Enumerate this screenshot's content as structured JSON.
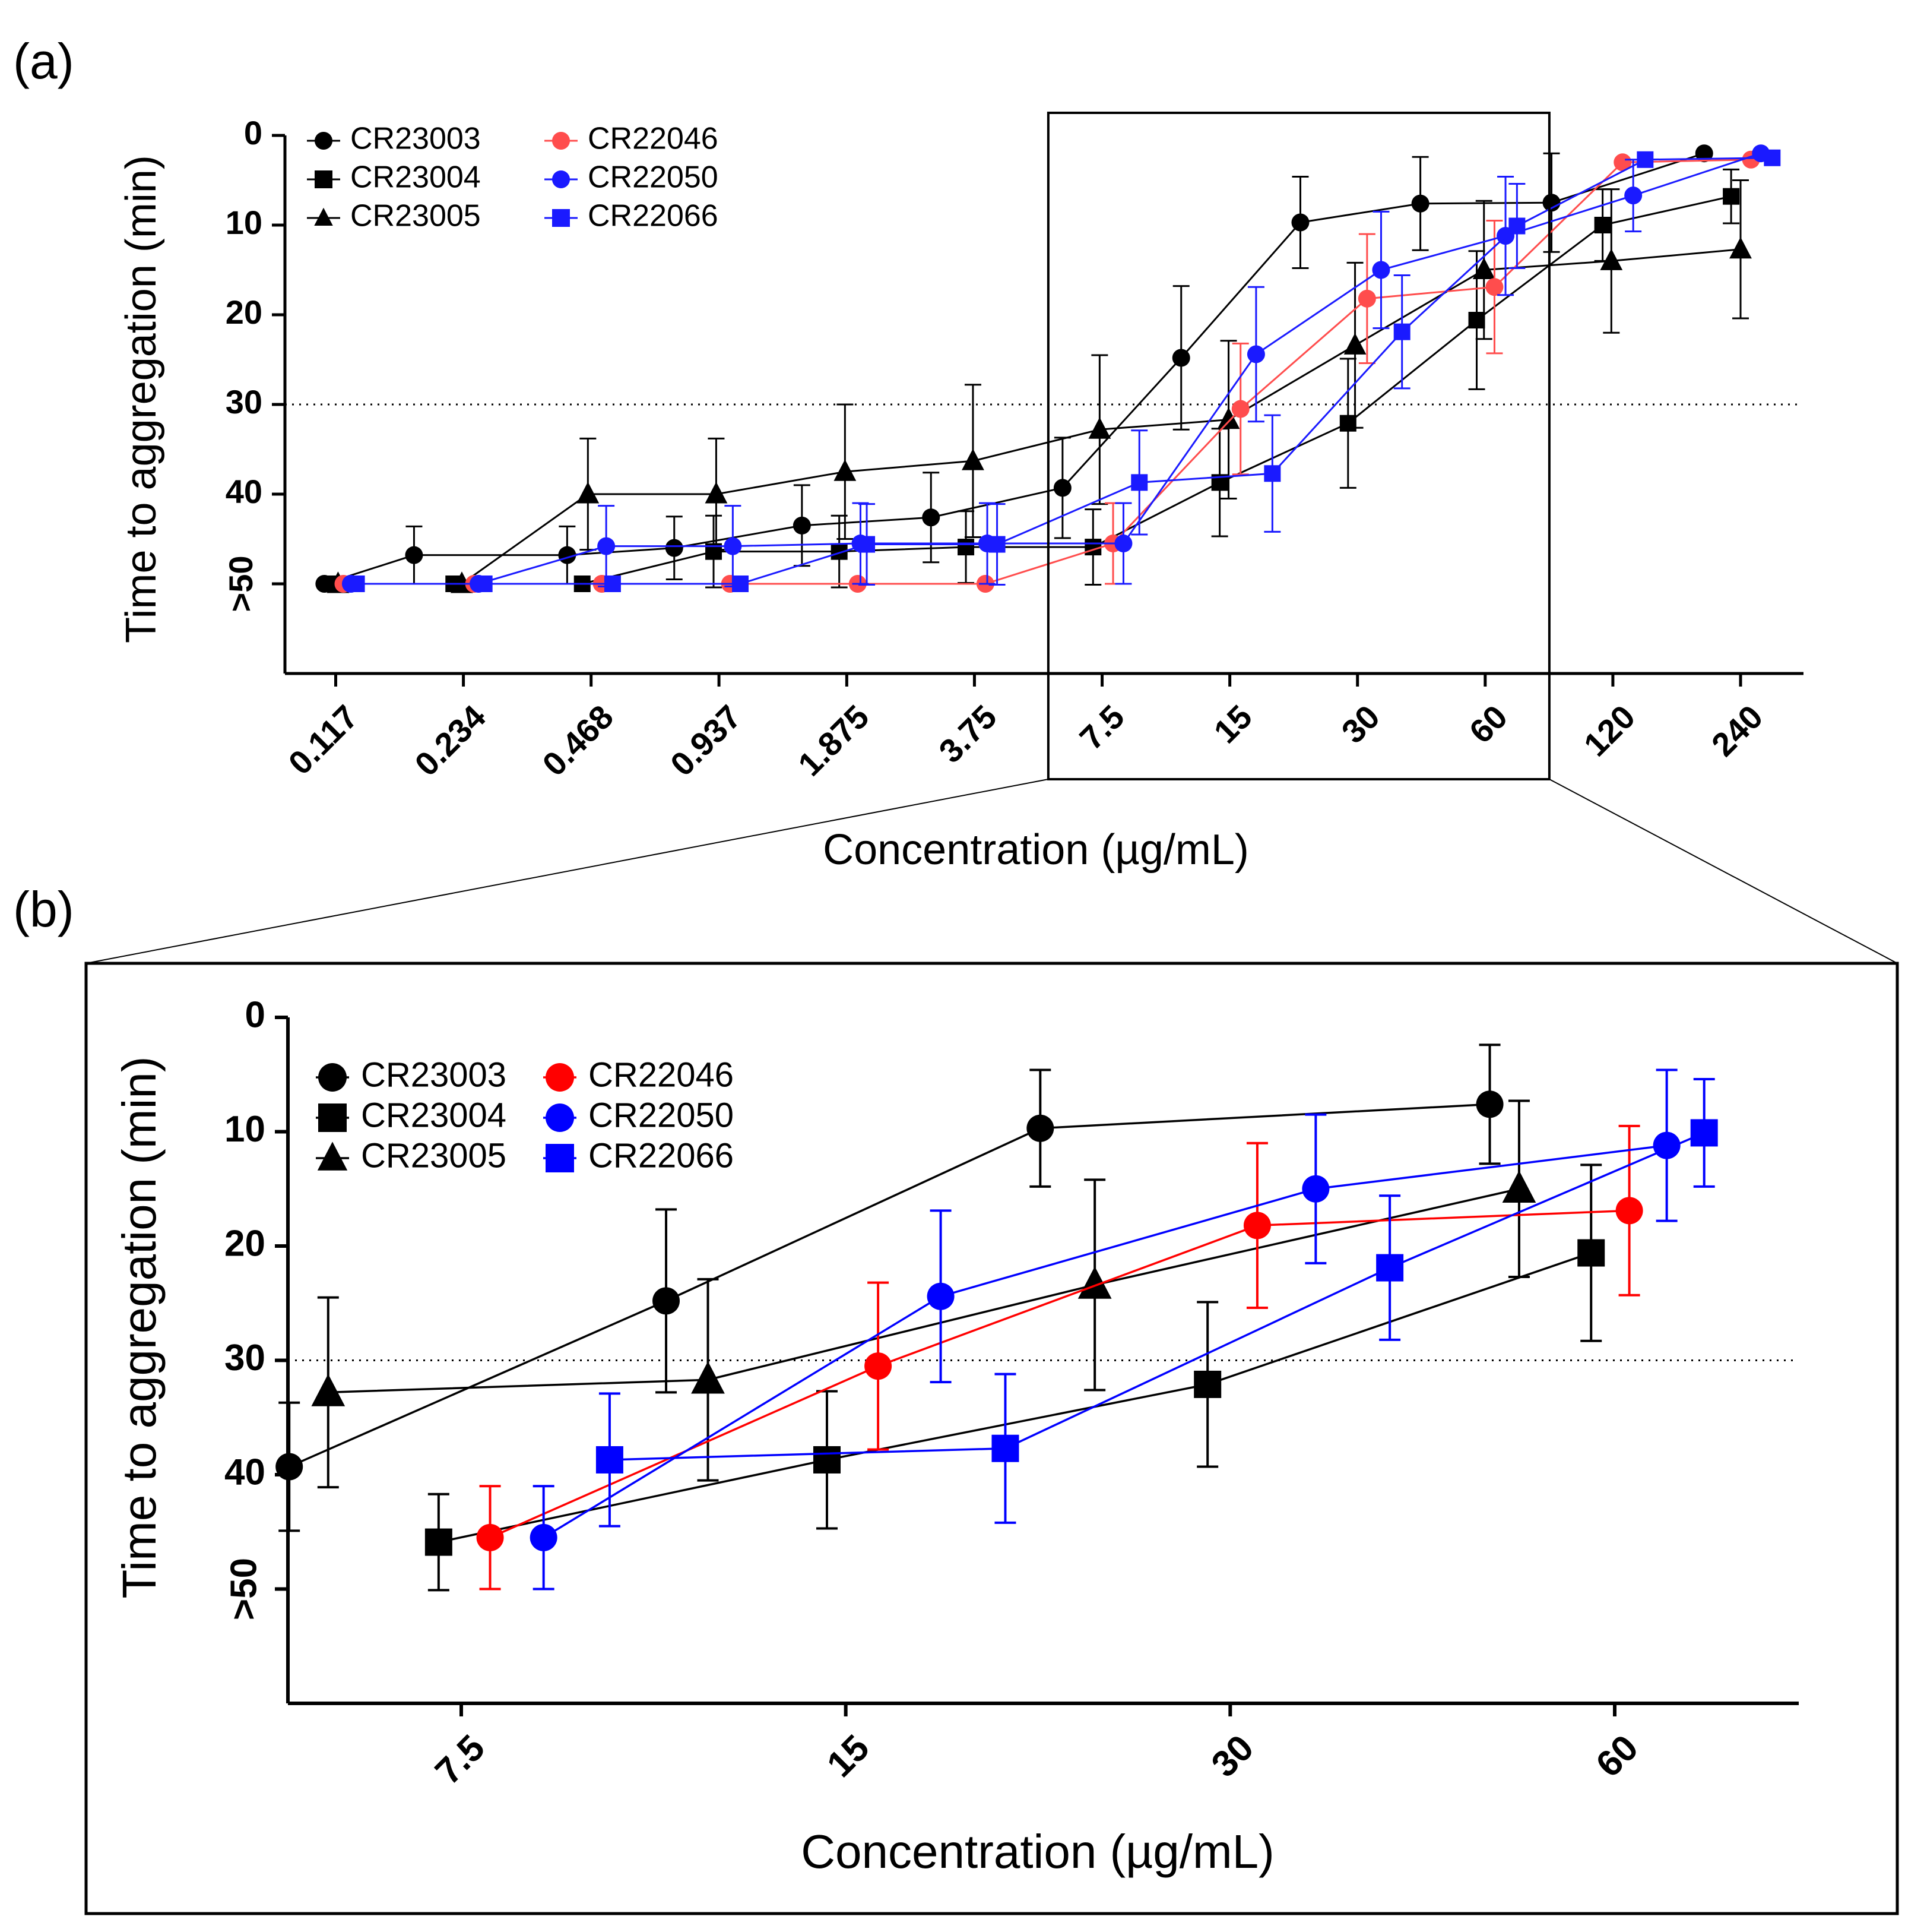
{
  "figure": {
    "panel_labels": [
      "(a)",
      "(b)"
    ]
  },
  "chart_data": [
    {
      "type": "line",
      "panel": "(a)",
      "xlabel": "Concentration (µg/mL)",
      "ylabel": "Time to aggregation (min)",
      "x_scale": "log2",
      "x_ticks": [
        0.117,
        0.234,
        0.468,
        0.937,
        1.875,
        3.75,
        7.5,
        15,
        30,
        60,
        120,
        240
      ],
      "x_tick_labels": [
        "0.117",
        "0.234",
        "0.468",
        "0.937",
        "1.875",
        "3.75",
        "7.5",
        "15",
        "30",
        "60",
        "120",
        "240"
      ],
      "y_ticks": [
        0,
        10,
        20,
        30,
        40,
        50
      ],
      "y_tick_labels": [
        "0",
        "10",
        "20",
        "30",
        "40",
        ">50"
      ],
      "ylim": [
        0,
        60
      ],
      "y_inverted": true,
      "reference_line": 30,
      "zoom_box_x": [
        5.6,
        85
      ],
      "legend": [
        "CR23003",
        "CR23004",
        "CR23005",
        "CR22046",
        "CR22050",
        "CR22066"
      ],
      "series": [
        {
          "name": "CR23003",
          "color": "#000000",
          "marker": "circle",
          "points": [
            [
              0.11,
              50,
              0
            ],
            [
              0.179,
              46.8,
              3.2
            ],
            [
              0.411,
              46.8,
              3.2
            ],
            [
              0.735,
              46,
              3.5
            ],
            [
              1.47,
              43.5,
              4.5
            ],
            [
              2.962,
              42.6,
              5
            ],
            [
              6.05,
              39.3,
              5.6
            ],
            [
              11.52,
              24.8,
              8
            ],
            [
              22.0,
              9.7,
              5.1
            ],
            [
              42.2,
              7.6,
              5.2
            ],
            [
              86.0,
              7.5,
              5.5
            ],
            [
              197,
              2,
              0
            ]
          ]
        },
        {
          "name": "CR23004",
          "color": "#000000",
          "marker": "square",
          "points": [
            [
              0.1129,
              50,
              0
            ],
            [
              0.222,
              50,
              0
            ],
            [
              0.446,
              50,
              0
            ],
            [
              0.91,
              46.4,
              4
            ],
            [
              1.8,
              46.4,
              4
            ],
            [
              3.58,
              45.9,
              4
            ],
            [
              7.14,
              45.9,
              4.2
            ],
            [
              14.2,
              38.7,
              6
            ],
            [
              28.5,
              32.1,
              7.2
            ],
            [
              57.3,
              20.6,
              7.7
            ],
            [
              113.5,
              10,
              4
            ],
            [
              228,
              6.8,
              3
            ]
          ]
        },
        {
          "name": "CR23005",
          "color": "#000000",
          "marker": "triangle",
          "points": [
            [
              0.1185,
              50,
              0
            ],
            [
              0.232,
              50,
              0
            ],
            [
              0.46,
              40,
              6.2
            ],
            [
              0.923,
              40,
              6.2
            ],
            [
              1.857,
              37.5,
              7.5
            ],
            [
              3.72,
              36.3,
              8.5
            ],
            [
              7.4,
              32.8,
              8.3
            ],
            [
              14.9,
              31.7,
              8.8
            ],
            [
              29.6,
              23.4,
              9.2
            ],
            [
              59.6,
              15,
              7.7
            ],
            [
              119,
              14,
              8
            ],
            [
              240,
              12.7,
              7.7
            ]
          ]
        },
        {
          "name": "CR22046",
          "color": "#ff4d4d",
          "marker": "circle",
          "points": [
            [
              0.122,
              50,
              0
            ],
            [
              0.248,
              50,
              0
            ],
            [
              0.496,
              50,
              0
            ],
            [
              0.995,
              50,
              0
            ],
            [
              1.99,
              50,
              0
            ],
            [
              3.98,
              50,
              0
            ],
            [
              7.96,
              45.5,
              4.5
            ],
            [
              15.9,
              30.5,
              7.3
            ],
            [
              31.6,
              18.2,
              7.2
            ],
            [
              63.1,
              16.9,
              7.4
            ],
            [
              126.5,
              3,
              0
            ],
            [
              254,
              2.7,
              0
            ]
          ]
        },
        {
          "name": "CR22050",
          "color": "#1a1aff",
          "marker": "circle",
          "points": [
            [
              0.127,
              50,
              0
            ],
            [
              0.254,
              50,
              0
            ],
            [
              0.508,
              45.8,
              4.5
            ],
            [
              1.01,
              45.8,
              4.5
            ],
            [
              2.02,
              45.5,
              4.5
            ],
            [
              4.02,
              45.5,
              4.5
            ],
            [
              8.42,
              45.5,
              4.5
            ],
            [
              17.3,
              24.4,
              7.5
            ],
            [
              34.1,
              15,
              6.5
            ],
            [
              67.0,
              11.2,
              6.6
            ],
            [
              134,
              6.7,
              4
            ],
            [
              268,
              2,
              0
            ]
          ]
        },
        {
          "name": "CR22066",
          "color": "#1a1aff",
          "marker": "square",
          "points": [
            [
              0.131,
              50,
              0
            ],
            [
              0.262,
              50,
              0
            ],
            [
              0.526,
              50,
              0
            ],
            [
              1.052,
              50,
              0
            ],
            [
              2.09,
              45.6,
              4.5
            ],
            [
              4.24,
              45.6,
              4.5
            ],
            [
              9.18,
              38.7,
              5.8
            ],
            [
              18.9,
              37.7,
              6.5
            ],
            [
              38.2,
              21.9,
              6.3
            ],
            [
              71.3,
              10.1,
              4.7
            ],
            [
              143,
              2.7,
              0
            ],
            [
              285,
              2.5,
              0
            ]
          ]
        }
      ]
    },
    {
      "type": "line",
      "panel": "(b)",
      "xlabel": "Concentration (µg/mL)",
      "ylabel": "Time to aggregation (min)",
      "x_scale": "log2",
      "x_ticks": [
        7.5,
        15,
        30,
        60
      ],
      "x_tick_labels": [
        "7.5",
        "15",
        "30",
        "60"
      ],
      "y_ticks": [
        0,
        10,
        20,
        30,
        40,
        50
      ],
      "y_tick_labels": [
        "0",
        "10",
        "20",
        "30",
        "40",
        ">50"
      ],
      "ylim": [
        0,
        60
      ],
      "y_inverted": true,
      "reference_line": 30,
      "legend": [
        "CR23003",
        "CR23004",
        "CR23005",
        "CR22046",
        "CR22050",
        "CR22066"
      ],
      "series": [
        {
          "name": "CR23003",
          "color": "#000000",
          "marker": "circle",
          "points": [
            [
              5.5,
              39.3,
              5.6
            ],
            [
              10.85,
              24.8,
              8
            ],
            [
              21.3,
              9.7,
              5.1
            ],
            [
              47.9,
              7.6,
              5.2
            ]
          ]
        },
        {
          "name": "CR23004",
          "color": "#000000",
          "marker": "square",
          "points": [
            [
              7.2,
              45.9,
              4.2
            ],
            [
              14.5,
              38.7,
              6
            ],
            [
              28.8,
              32.1,
              7.2
            ],
            [
              57.5,
              20.6,
              7.7
            ]
          ]
        },
        {
          "name": "CR23005",
          "color": "#000000",
          "marker": "triangle",
          "points": [
            [
              5.9,
              32.8,
              8.3
            ],
            [
              11.7,
              31.7,
              8.8
            ],
            [
              23.5,
              23.4,
              9.2
            ],
            [
              50.5,
              15,
              7.7
            ]
          ]
        },
        {
          "name": "CR22046",
          "color": "#ff0000",
          "marker": "circle",
          "points": [
            [
              7.9,
              45.5,
              4.5
            ],
            [
              15.9,
              30.5,
              7.3
            ],
            [
              31.5,
              18.2,
              7.2
            ],
            [
              61.6,
              16.9,
              7.4
            ]
          ]
        },
        {
          "name": "CR22050",
          "color": "#0000ff",
          "marker": "circle",
          "points": [
            [
              8.7,
              45.5,
              4.5
            ],
            [
              17.8,
              24.4,
              7.5
            ],
            [
              35.0,
              15,
              6.5
            ],
            [
              65.9,
              11.2,
              6.6
            ]
          ]
        },
        {
          "name": "CR22066",
          "color": "#0000ff",
          "marker": "square",
          "points": [
            [
              9.8,
              38.7,
              5.8
            ],
            [
              20.0,
              37.7,
              6.5
            ],
            [
              40.0,
              21.9,
              6.3
            ],
            [
              70.5,
              10.1,
              4.7
            ]
          ]
        }
      ]
    }
  ]
}
